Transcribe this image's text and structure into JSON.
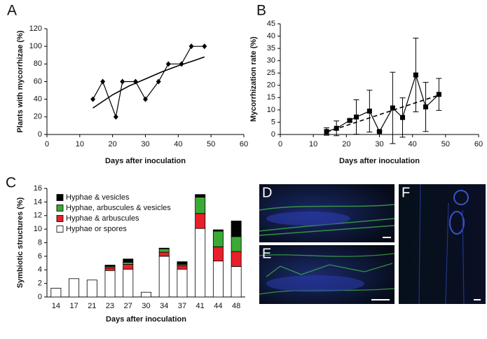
{
  "chart_data": [
    {
      "panel": "A",
      "type": "line",
      "xlabel": "Days after inoculation",
      "ylabel": "Plants with mycorrhizae (%)",
      "xlim": [
        0,
        60
      ],
      "xticks": [
        0,
        10,
        20,
        30,
        40,
        50,
        60
      ],
      "ylim": [
        0,
        120
      ],
      "yticks": [
        0,
        20,
        40,
        60,
        80,
        100,
        120
      ],
      "series": [
        {
          "x": [
            14,
            17,
            21,
            23,
            27,
            30,
            34,
            37,
            41,
            44,
            48
          ],
          "values": [
            40,
            60,
            20,
            60,
            60,
            40,
            60,
            80,
            80,
            100,
            100
          ],
          "color": "#000000",
          "marker": "diamond",
          "dash": false
        },
        {
          "x": [
            14,
            20,
            25,
            30,
            35,
            40,
            45,
            48
          ],
          "values": [
            30,
            45,
            55,
            63,
            71,
            78,
            84,
            88
          ],
          "color": "#000000",
          "marker": "none",
          "dash": false
        }
      ]
    },
    {
      "panel": "B",
      "type": "line",
      "xlabel": "Days after inoculation",
      "ylabel": "Mycorrhization rate (%)",
      "xlim": [
        0,
        60
      ],
      "xticks": [
        0,
        10,
        20,
        30,
        40,
        50,
        60
      ],
      "ylim": [
        0,
        45
      ],
      "yticks": [
        0,
        5,
        10,
        15,
        20,
        25,
        30,
        35,
        40,
        45
      ],
      "series": [
        {
          "x": [
            14,
            17,
            21,
            23,
            27,
            30,
            34,
            37,
            41,
            44,
            48
          ],
          "values": [
            1.2,
            2.5,
            5.7,
            7.1,
            9.5,
            1.2,
            10.8,
            6.9,
            24.2,
            11.2,
            16.3
          ],
          "errors": [
            1.5,
            3,
            0.5,
            7,
            8.5,
            0.3,
            14.5,
            8,
            15,
            10,
            6.5
          ],
          "color": "#000000",
          "marker": "square",
          "dash": false
        },
        {
          "x": [
            14,
            48
          ],
          "values": [
            1,
            16
          ],
          "color": "#000000",
          "marker": "none",
          "dash": true
        }
      ]
    },
    {
      "panel": "C",
      "type": "bar",
      "stacked": true,
      "xlabel": "Days after inoculation",
      "ylabel": "Symbiotic structures (%)",
      "ylim": [
        0,
        16
      ],
      "yticks": [
        0,
        2,
        4,
        6,
        8,
        10,
        12,
        14,
        16
      ],
      "legend": "upper left",
      "categories": [
        "14",
        "17",
        "21",
        "23",
        "27",
        "30",
        "34",
        "37",
        "41",
        "44",
        "48"
      ],
      "series": [
        {
          "name": "Hyphae or spores",
          "color": "#ffffff",
          "values": [
            1.3,
            2.7,
            2.5,
            3.9,
            4.1,
            0.7,
            6.0,
            4.1,
            10.1,
            5.3,
            4.5
          ]
        },
        {
          "name": "Hyphae & arbuscules",
          "color": "#e8202a",
          "values": [
            0,
            0,
            0,
            0.4,
            0.7,
            0,
            0.6,
            0.5,
            2.2,
            2.1,
            2.2
          ]
        },
        {
          "name": "Hyphae, arbuscules & vesicles",
          "color": "#3aaa35",
          "values": [
            0,
            0,
            0,
            0.2,
            0.3,
            0,
            0.5,
            0.2,
            2.4,
            2.3,
            2.2
          ]
        },
        {
          "name": "Hyphae & vesicles",
          "color": "#000000",
          "values": [
            0,
            0,
            0,
            0.2,
            0.5,
            0,
            0.1,
            0.4,
            0.4,
            0.2,
            2.3
          ]
        }
      ]
    }
  ],
  "images": [
    {
      "label": "D"
    },
    {
      "label": "E"
    },
    {
      "label": "F"
    }
  ]
}
